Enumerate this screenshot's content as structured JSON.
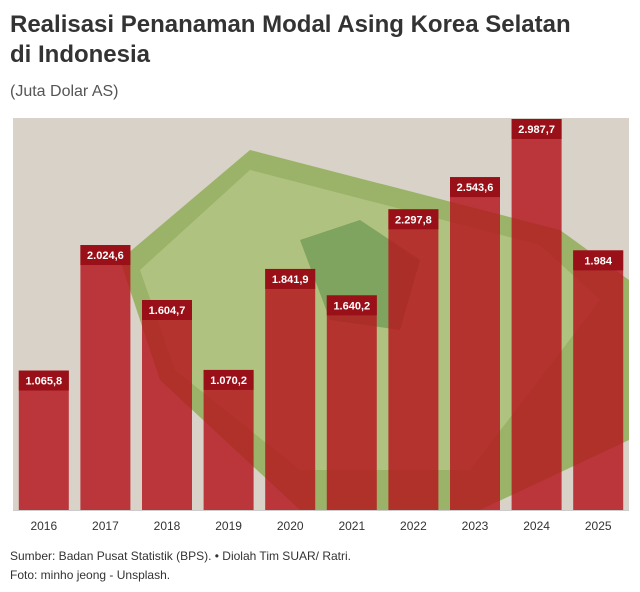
{
  "chart_data": {
    "type": "bar",
    "title": "Realisasi Penanaman Modal Asing Korea Selatan di Indonesia",
    "subtitle": "(Juta Dolar AS)",
    "categories": [
      "2016",
      "2017",
      "2018",
      "2019",
      "2020",
      "2021",
      "2022",
      "2023",
      "2024",
      "2025"
    ],
    "values": [
      1065.8,
      2024.6,
      1604.7,
      1070.2,
      1841.9,
      1640.2,
      2297.8,
      2543.6,
      2987.7,
      1984
    ],
    "value_labels": [
      "1.065,8",
      "2.024,6",
      "1.604,7",
      "1.070,2",
      "1.841,9",
      "1.640,2",
      "2.297,8",
      "2.543,6",
      "2.987,7",
      "1.984"
    ],
    "color": "#b5141c",
    "source": "Sumber: Badan Pusat Statistik (BPS). • Diolah Tim SUAR/ Ratri.",
    "credit": "Foto: minho jeong - Unsplash."
  }
}
